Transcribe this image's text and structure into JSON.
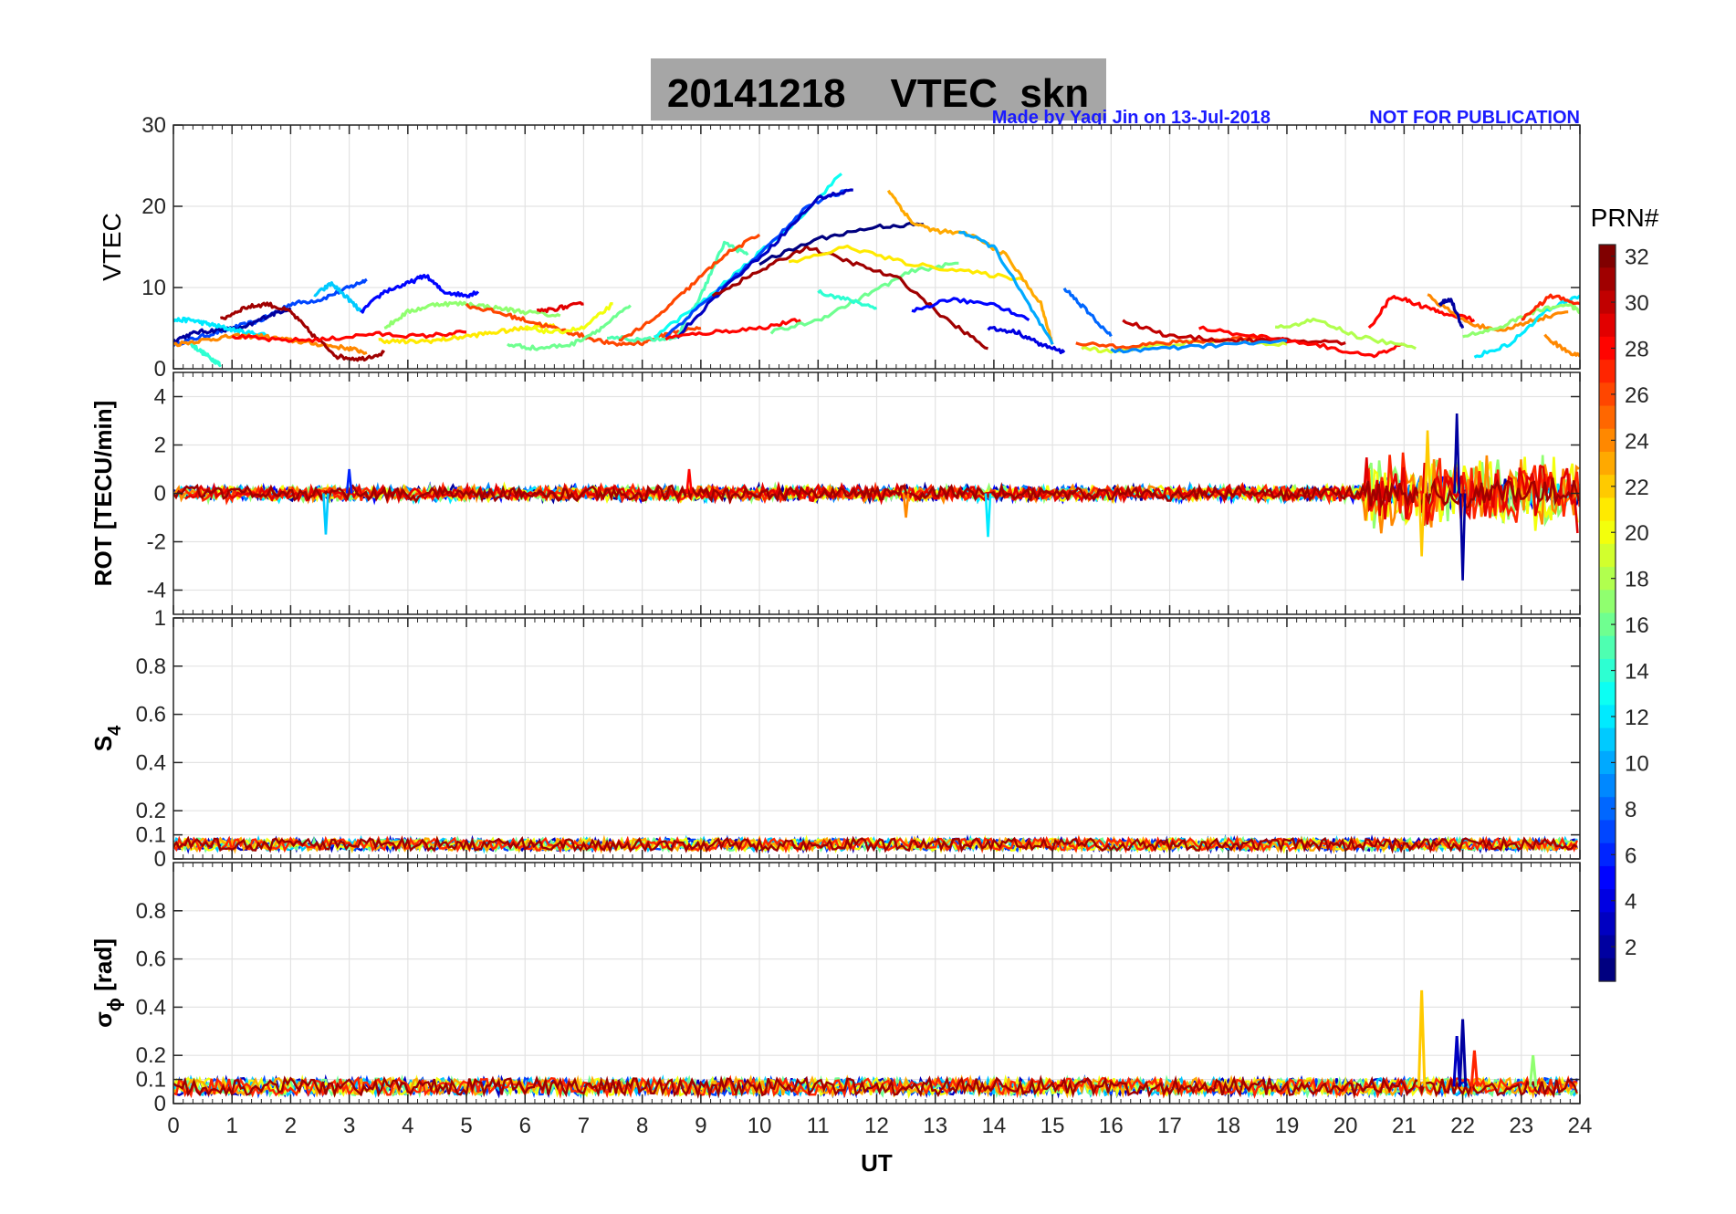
{
  "header": {
    "title": "20141218    VTEC  skn",
    "credit": "Made by Yaqi Jin on 13-Jul-2018",
    "notice": "NOT FOR PUBLICATION",
    "title_bg": "#a6a6a6",
    "credit_color": "#1a1aff"
  },
  "chart_data": [
    {
      "type": "line",
      "id": "vtec",
      "ylabel": "VTEC",
      "ylim": [
        0,
        30
      ],
      "yticks": [
        0,
        10,
        20,
        30
      ],
      "xlim": [
        0,
        24
      ],
      "grid": true,
      "series": [
        {
          "prn": 7,
          "x": [
            0,
            0.5,
            1,
            1.5,
            2,
            2.5,
            3,
            3.3
          ],
          "y": [
            3,
            4,
            5,
            6,
            8,
            8.5,
            10,
            11
          ]
        },
        {
          "prn": 2,
          "x": [
            0,
            0.4,
            0.8,
            1.2,
            1.6,
            2.0
          ],
          "y": [
            3.5,
            4.5,
            4.8,
            5,
            6.5,
            7.5
          ]
        },
        {
          "prn": 12,
          "x": [
            0,
            0.3,
            0.6,
            0.9,
            1.2,
            1.6
          ],
          "y": [
            6,
            6,
            5.5,
            5,
            4.5,
            4.2
          ]
        },
        {
          "prn": 14,
          "x": [
            0.3,
            0.5,
            0.7,
            0.8
          ],
          "y": [
            3,
            2,
            1,
            0.5
          ]
        },
        {
          "prn": 24,
          "x": [
            0,
            0.5,
            1,
            1.5,
            2,
            2.5,
            3,
            3.3
          ],
          "y": [
            3,
            3.5,
            4,
            4,
            3.5,
            3,
            2.5,
            2
          ]
        },
        {
          "prn": 31,
          "x": [
            0.8,
            1.2,
            1.6,
            2,
            2.4,
            2.8,
            3.2,
            3.6
          ],
          "y": [
            6,
            7.5,
            8,
            7,
            4,
            1.5,
            1.2,
            2
          ]
        },
        {
          "prn": 28,
          "x": [
            1,
            1.8,
            2.6,
            3.4,
            4.2,
            5.0
          ],
          "y": [
            4,
            3.5,
            3.6,
            4.3,
            4,
            4.5
          ]
        },
        {
          "prn": 11,
          "x": [
            2.4,
            2.7,
            3.0,
            3.2
          ],
          "y": [
            9,
            10.5,
            8.5,
            7
          ]
        },
        {
          "prn": 5,
          "x": [
            3.2,
            3.6,
            4.0,
            4.3,
            4.6,
            5.0,
            5.2
          ],
          "y": [
            7,
            9.5,
            10.5,
            11.5,
            9.5,
            9,
            9.5
          ]
        },
        {
          "prn": 17,
          "x": [
            3.6,
            4.0,
            4.5,
            5.0,
            5.5,
            6.0,
            6.6
          ],
          "y": [
            5,
            7,
            8,
            8,
            7.5,
            7,
            6.5
          ]
        },
        {
          "prn": 21,
          "x": [
            3.5,
            4,
            4.5,
            5,
            5.5,
            6,
            6.5
          ],
          "y": [
            3.5,
            3.3,
            3.5,
            4,
            4.5,
            5,
            5.5
          ]
        },
        {
          "prn": 26,
          "x": [
            5,
            5.5,
            6,
            6.5,
            7,
            7.5,
            8,
            8.5,
            9
          ],
          "y": [
            7.8,
            7,
            6,
            5,
            4,
            3,
            3.2,
            4.5,
            5
          ]
        },
        {
          "prn": 16,
          "x": [
            5.7,
            6.2,
            6.8,
            7.3,
            7.8
          ],
          "y": [
            3,
            2.5,
            3,
            5,
            7.8
          ]
        },
        {
          "prn": 20,
          "x": [
            6,
            6.5,
            7,
            7.5
          ],
          "y": [
            5,
            4.5,
            5,
            8
          ]
        },
        {
          "prn": 29,
          "x": [
            6.2,
            6.6,
            7.0
          ],
          "y": [
            7,
            7.5,
            8
          ]
        },
        {
          "prn": 15,
          "x": [
            7.4,
            8.0,
            8.6,
            9.0,
            9.4,
            9.8
          ],
          "y": [
            4,
            3.5,
            4,
            9,
            15.5,
            14
          ]
        },
        {
          "prn": 26,
          "x": [
            7.6,
            8.2,
            8.8,
            9.4,
            10.0
          ],
          "y": [
            3.5,
            6,
            10,
            14,
            16.5
          ]
        },
        {
          "prn": 13,
          "x": [
            8.2,
            9,
            9.8,
            10.6,
            11.4
          ],
          "y": [
            4,
            8,
            13,
            18,
            24
          ]
        },
        {
          "prn": 7,
          "x": [
            8.4,
            9.2,
            10,
            10.8,
            11.5
          ],
          "y": [
            4,
            9,
            14,
            20,
            22
          ]
        },
        {
          "prn": 3,
          "x": [
            8.6,
            9.4,
            10.2,
            11.0,
            11.6
          ],
          "y": [
            4,
            10,
            15,
            21,
            22
          ]
        },
        {
          "prn": 28,
          "x": [
            8.4,
            9.2,
            10.0,
            10.7
          ],
          "y": [
            3.8,
            4.5,
            5,
            6
          ]
        },
        {
          "prn": 16,
          "x": [
            10.2,
            11,
            11.8,
            12.6,
            13.4
          ],
          "y": [
            4.5,
            6,
            9,
            12,
            13
          ]
        },
        {
          "prn": 31,
          "x": [
            9.2,
            10,
            10.8,
            11.6,
            12.4,
            13.2,
            13.9
          ],
          "y": [
            9,
            12,
            15,
            13,
            11,
            6,
            2.5
          ]
        },
        {
          "prn": 1,
          "x": [
            10,
            11,
            12,
            12.8
          ],
          "y": [
            13,
            16,
            17.5,
            17.8
          ]
        },
        {
          "prn": 21,
          "x": [
            10.5,
            11.5,
            12.5,
            13.5,
            14.5
          ],
          "y": [
            13,
            15,
            13,
            12,
            11
          ]
        },
        {
          "prn": 14,
          "x": [
            11.0,
            11.5,
            12.0
          ],
          "y": [
            9.5,
            8.5,
            7.5
          ]
        },
        {
          "prn": 23,
          "x": [
            12.2,
            12.6,
            13,
            13.6,
            14.2,
            14.8,
            15.0
          ],
          "y": [
            22,
            18,
            17,
            16.5,
            14,
            8,
            3
          ]
        },
        {
          "prn": 10,
          "x": [
            13.4,
            14.0,
            14.5,
            15.0
          ],
          "y": [
            17,
            15,
            9,
            3
          ]
        },
        {
          "prn": 5,
          "x": [
            12.6,
            13.2,
            14,
            14.6
          ],
          "y": [
            7,
            8.5,
            8,
            6
          ]
        },
        {
          "prn": 4,
          "x": [
            13.9,
            14.4,
            14.8,
            15.2
          ],
          "y": [
            5,
            4.5,
            3,
            2
          ]
        },
        {
          "prn": 8,
          "x": [
            15.2,
            15.6,
            16
          ],
          "y": [
            10,
            7,
            4
          ]
        },
        {
          "prn": 19,
          "x": [
            15.5,
            16,
            17,
            18,
            19
          ],
          "y": [
            2.5,
            2.2,
            3,
            3.5,
            3
          ]
        },
        {
          "prn": 26,
          "x": [
            15.4,
            16.2,
            17.0,
            17.8,
            18.6
          ],
          "y": [
            3,
            2.8,
            3.2,
            3.5,
            4
          ]
        },
        {
          "prn": 30,
          "x": [
            16.2,
            17,
            18,
            19,
            20
          ],
          "y": [
            6,
            4,
            3.5,
            3.5,
            3.2
          ]
        },
        {
          "prn": 28,
          "x": [
            17.5,
            18.5,
            19.5,
            20.4,
            21.0
          ],
          "y": [
            5,
            4,
            3,
            1.5,
            3
          ]
        },
        {
          "prn": 9,
          "x": [
            16,
            17,
            18,
            19
          ],
          "y": [
            2.2,
            2.5,
            3,
            3.4
          ]
        },
        {
          "prn": 18,
          "x": [
            18.8,
            19.5,
            20.2,
            21.2
          ],
          "y": [
            5,
            6,
            4,
            2.5
          ]
        },
        {
          "prn": 28,
          "x": [
            20.4,
            20.8,
            21.2,
            21.6,
            22.2
          ],
          "y": [
            5,
            9,
            8,
            7,
            6
          ]
        },
        {
          "prn": 24,
          "x": [
            21.4,
            22,
            22.6,
            23.2,
            23.8
          ],
          "y": [
            9,
            6,
            4.5,
            6,
            7
          ]
        },
        {
          "prn": 12,
          "x": [
            22.2,
            22.8,
            23.4,
            24
          ],
          "y": [
            1.5,
            3,
            7,
            9
          ]
        },
        {
          "prn": 17,
          "x": [
            22,
            22.6,
            23.2,
            23.8,
            24
          ],
          "y": [
            4,
            5,
            7,
            8,
            7
          ]
        },
        {
          "prn": 27,
          "x": [
            23,
            23.5,
            24
          ],
          "y": [
            6,
            9,
            8
          ]
        },
        {
          "prn": 24,
          "x": [
            23.4,
            23.7,
            24
          ],
          "y": [
            4,
            2.5,
            1.5
          ]
        },
        {
          "prn": 2,
          "x": [
            21.6,
            21.8,
            22.0
          ],
          "y": [
            8,
            8.5,
            5
          ]
        }
      ]
    },
    {
      "type": "line",
      "id": "rot",
      "ylabel": "ROT [TECU/min]",
      "ylim": [
        -5,
        5
      ],
      "yticks": [
        -4,
        -2,
        0,
        2,
        4
      ],
      "xlim": [
        0,
        24
      ],
      "grid": true,
      "noise": [
        {
          "x0": 0,
          "x1": 20.3,
          "amp": 0.35
        },
        {
          "x0": 20.3,
          "x1": 24,
          "amp": 1.8
        }
      ],
      "spikes": [
        {
          "x": 2.6,
          "y": -1.7
        },
        {
          "x": 3.0,
          "y": 1.0
        },
        {
          "x": 8.8,
          "y": 1.0
        },
        {
          "x": 12.5,
          "y": -1.0
        },
        {
          "x": 13.9,
          "y": -1.8
        },
        {
          "x": 21.3,
          "y": -2.6
        },
        {
          "x": 21.4,
          "y": 2.6
        },
        {
          "x": 21.9,
          "y": 3.3
        },
        {
          "x": 22.0,
          "y": -3.6
        }
      ]
    },
    {
      "type": "line",
      "id": "s4",
      "ylabel": "S",
      "ylabel_sub": "4",
      "ylim": [
        0,
        1
      ],
      "yticks": [
        0,
        0.1,
        0.2,
        0.4,
        0.6,
        0.8,
        1
      ],
      "xlim": [
        0,
        24
      ],
      "grid": true,
      "base": 0.06,
      "noise_amp": 0.025
    },
    {
      "type": "line",
      "id": "sigma",
      "ylabel": "σ",
      "ylabel_sub": "ϕ",
      "ylabel_unit": " [rad]",
      "ylim": [
        0,
        1
      ],
      "yticks": [
        0,
        0.1,
        0.2,
        0.4,
        0.6,
        0.8
      ],
      "xlim": [
        0,
        24
      ],
      "xticks": [
        0,
        1,
        2,
        3,
        4,
        5,
        6,
        7,
        8,
        9,
        10,
        11,
        12,
        13,
        14,
        15,
        16,
        17,
        18,
        19,
        20,
        21,
        22,
        23,
        24
      ],
      "xlabel": "UT",
      "grid": true,
      "base": 0.07,
      "noise_amp": 0.035,
      "spikes": [
        {
          "x": 21.3,
          "y": 0.47
        },
        {
          "x": 22.0,
          "y": 0.35
        },
        {
          "x": 21.9,
          "y": 0.28
        },
        {
          "x": 22.2,
          "y": 0.22
        },
        {
          "x": 23.2,
          "y": 0.2
        }
      ]
    }
  ],
  "colorbar": {
    "label": "PRN#",
    "min": 1,
    "max": 32,
    "ticks": [
      2,
      4,
      6,
      8,
      10,
      12,
      14,
      16,
      18,
      20,
      22,
      24,
      26,
      28,
      30,
      32
    ],
    "colormap": "jet"
  }
}
